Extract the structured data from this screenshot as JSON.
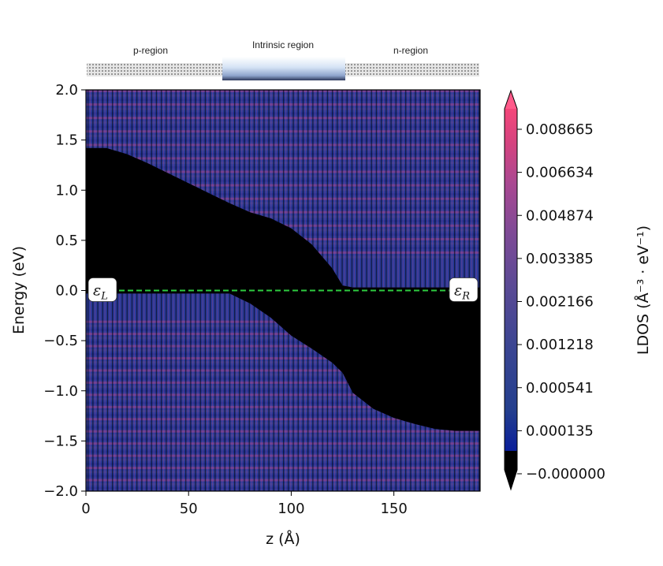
{
  "chart_data": {
    "type": "heatmap",
    "title": "",
    "xlabel": "z (Å)",
    "ylabel": "Energy (eV)",
    "xlim": [
      0,
      192
    ],
    "ylim": [
      -2.0,
      2.0
    ],
    "xticks": [
      "0",
      "50",
      "100",
      "150"
    ],
    "xtick_values": [
      0,
      50,
      100,
      150
    ],
    "yticks": [
      "2.0",
      "1.5",
      "1.0",
      "0.5",
      "0.0",
      "−0.5",
      "−1.0",
      "−1.5",
      "−2.0"
    ],
    "ytick_values": [
      2.0,
      1.5,
      1.0,
      0.5,
      0.0,
      -0.5,
      -1.0,
      -1.5,
      -2.0
    ],
    "colorbar": {
      "label": "LDOS (Å⁻³ · eV⁻¹)",
      "ticks": [
        "0.008665",
        "0.006634",
        "0.004874",
        "0.003385",
        "0.002166",
        "0.001218",
        "0.000541",
        "0.000135",
        "−0.000000"
      ],
      "tick_values": [
        0.008665,
        0.006634,
        0.004874,
        0.003385,
        0.002166,
        0.001218,
        0.000541,
        0.000135,
        -0.0
      ],
      "colors": [
        "#000000",
        "#0a1e9a",
        "#243f8e",
        "#3a4592",
        "#5a4a95",
        "#7f4a96",
        "#a94892",
        "#d5437f",
        "#f4477a",
        "#ff5a8a"
      ],
      "extend": "both"
    },
    "fermi_level": {
      "energy": 0.0,
      "color": "#2ecc40",
      "left_label": "L",
      "right_label": "R",
      "symbol": "ε"
    },
    "band_edges": {
      "z": [
        0,
        10,
        20,
        30,
        40,
        50,
        60,
        70,
        80,
        90,
        100,
        110,
        120,
        125,
        130,
        140,
        150,
        160,
        170,
        180,
        192
      ],
      "conduction_band_min": [
        1.42,
        1.42,
        1.36,
        1.27,
        1.17,
        1.07,
        0.97,
        0.87,
        0.78,
        0.72,
        0.62,
        0.46,
        0.22,
        0.05,
        0.03,
        0.03,
        0.03,
        0.03,
        0.03,
        0.03,
        0.03
      ],
      "valence_band_max": [
        -0.03,
        -0.03,
        -0.03,
        -0.03,
        -0.03,
        -0.03,
        -0.03,
        -0.03,
        -0.13,
        -0.27,
        -0.45,
        -0.58,
        -0.72,
        -0.82,
        -1.02,
        -1.18,
        -1.27,
        -1.33,
        -1.38,
        -1.4,
        -1.4
      ]
    }
  },
  "device_header": {
    "left_label": "p-region",
    "middle_label": "Intrinsic region",
    "right_label": "n-region"
  }
}
